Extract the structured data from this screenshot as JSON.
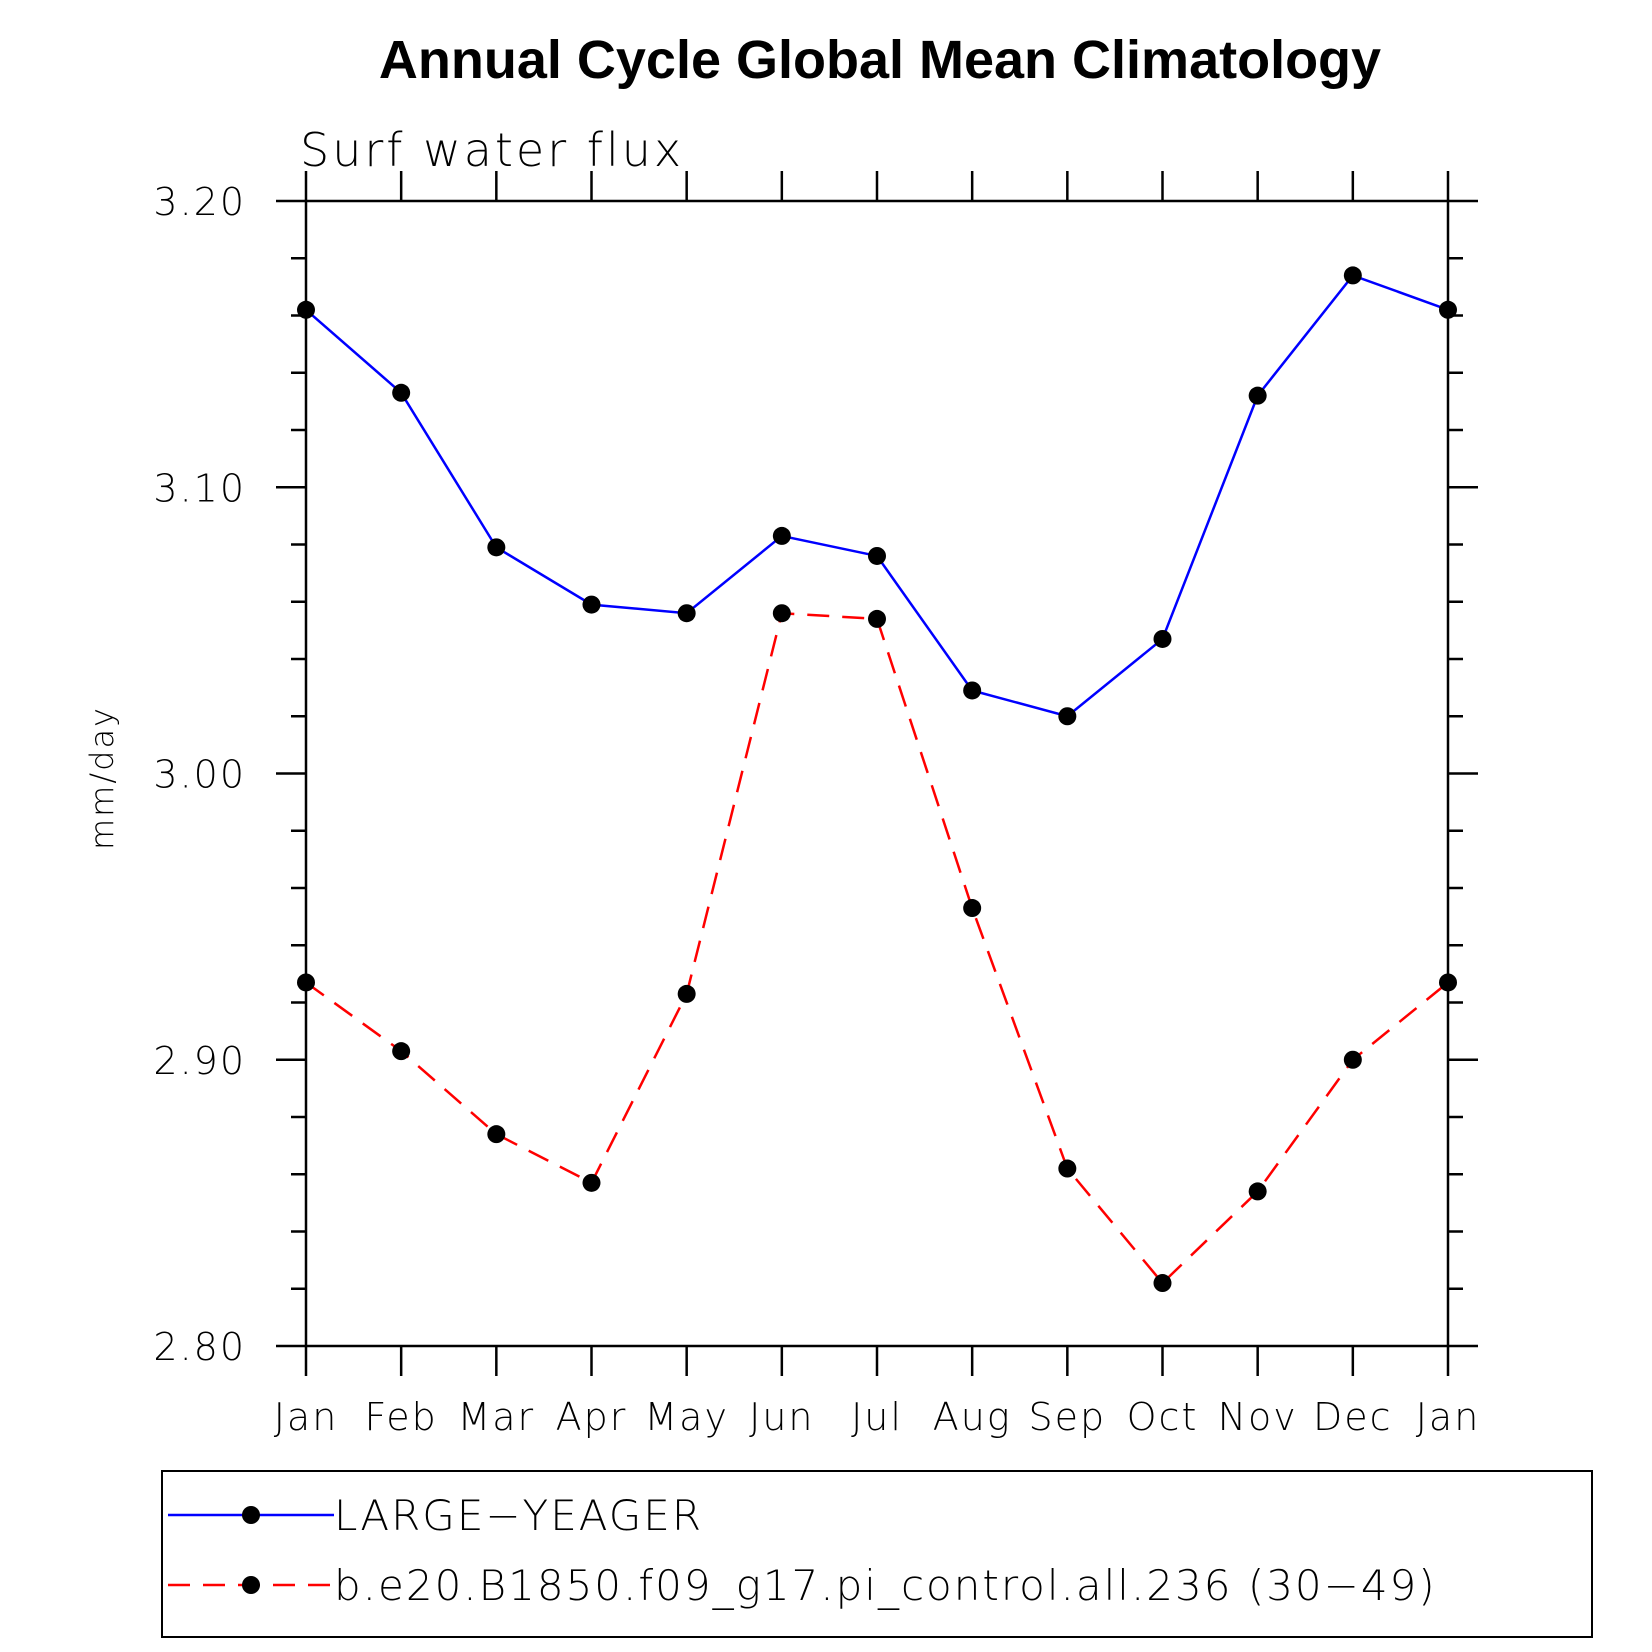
{
  "chart_data": {
    "type": "line",
    "title": "Annual Cycle Global Mean Climatology",
    "subtitle": "Surf water flux",
    "xlabel": "",
    "ylabel": "mm/day",
    "categories": [
      "Jan",
      "Feb",
      "Mar",
      "Apr",
      "May",
      "Jun",
      "Jul",
      "Aug",
      "Sep",
      "Oct",
      "Nov",
      "Dec",
      "Jan"
    ],
    "ylim": [
      2.8,
      3.2
    ],
    "yticks": [
      "2.80",
      "2.90",
      "3.00",
      "3.10",
      "3.20"
    ],
    "grid": false,
    "legend_position": "bottom",
    "series": [
      {
        "name": "LARGE−YEAGER",
        "color": "#0000ff",
        "line_style": "solid",
        "marker": "filled-circle",
        "values": [
          3.162,
          3.133,
          3.079,
          3.059,
          3.056,
          3.083,
          3.076,
          3.029,
          3.02,
          3.047,
          3.132,
          3.174,
          3.162
        ]
      },
      {
        "name": "b.e20.B1850.f09_g17.pi_control.all.236 (30−49)",
        "color": "#ff0000",
        "line_style": "dashed",
        "marker": "filled-circle",
        "values": [
          2.927,
          2.903,
          2.874,
          2.857,
          2.923,
          3.056,
          3.054,
          2.953,
          2.862,
          2.822,
          2.854,
          2.9,
          2.927
        ]
      }
    ]
  }
}
